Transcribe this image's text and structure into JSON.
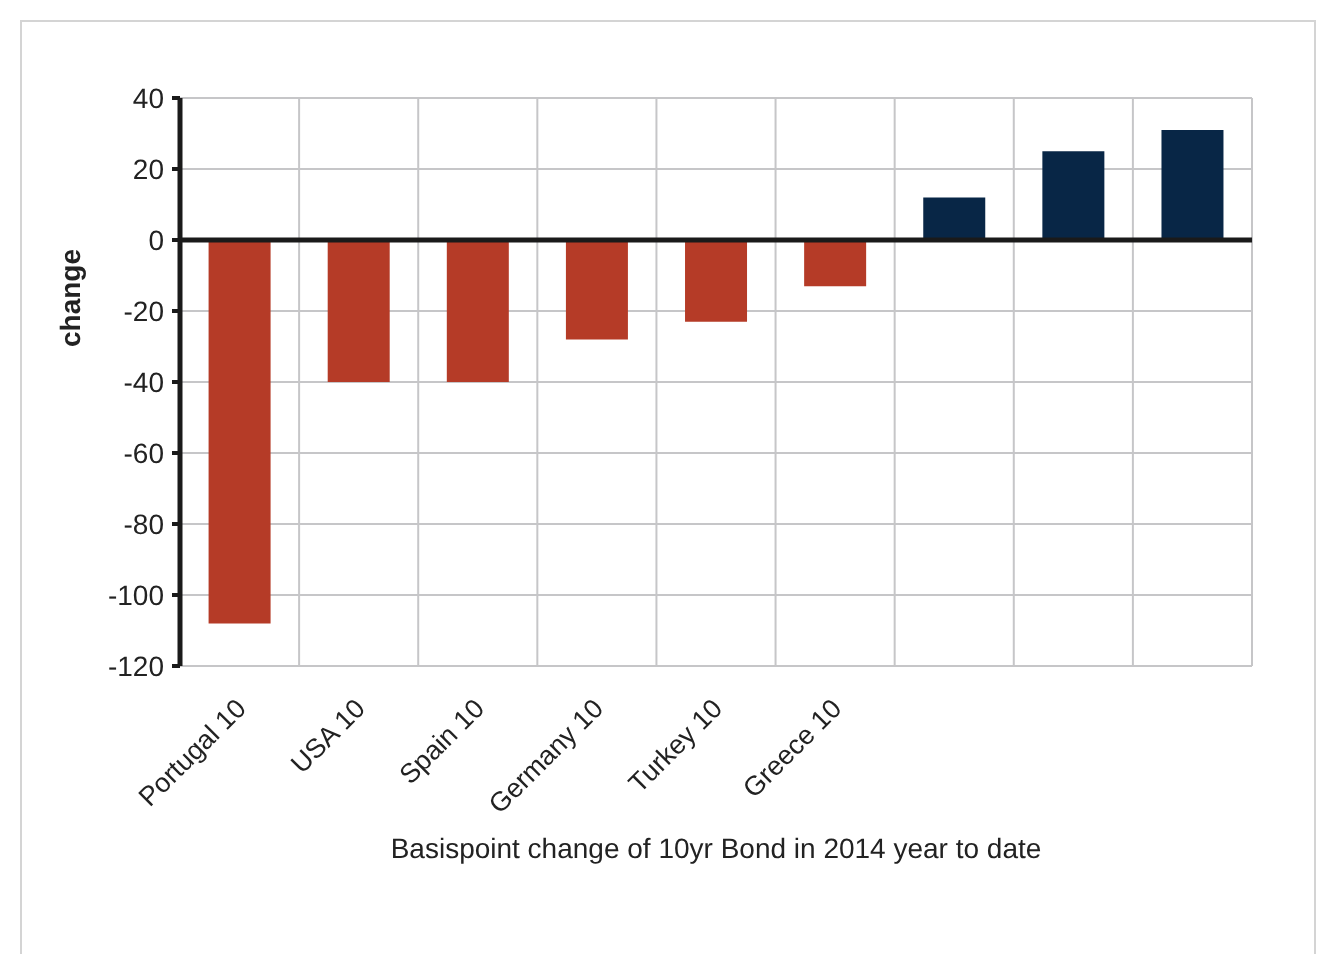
{
  "chart_data": {
    "type": "bar",
    "xlabel": "Basispoint change of 10yr Bond in 2014 year to date",
    "ylabel": "change",
    "categories": [
      "Portugal 10",
      "USA 10",
      "Spain 10",
      "Germany 10",
      "Turkey 10",
      "Greece 10",
      null,
      null,
      null
    ],
    "values": [
      -108,
      -40,
      -40,
      -28,
      -23,
      -13,
      12,
      25,
      31
    ],
    "colors": [
      "#b53b27",
      "#b53b27",
      "#b53b27",
      "#b53b27",
      "#b53b27",
      "#b53b27",
      "#082646",
      "#082646",
      "#082646"
    ],
    "ylim": [
      -120,
      40
    ],
    "yticks": [
      -120,
      -100,
      -80,
      -60,
      -40,
      -20,
      0,
      20,
      40
    ],
    "grid": true
  }
}
